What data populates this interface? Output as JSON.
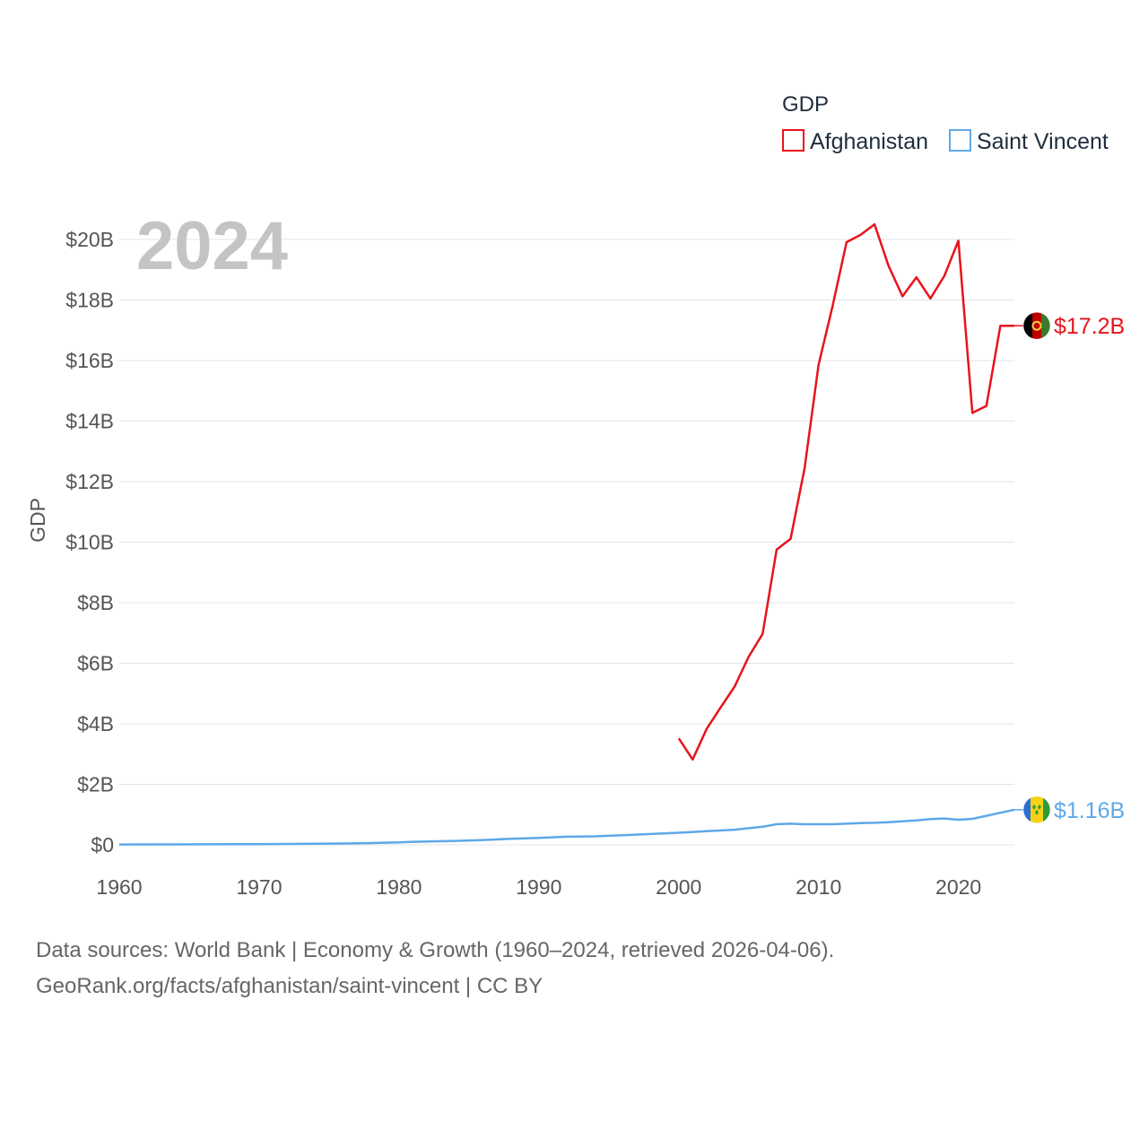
{
  "chart_data": {
    "type": "line",
    "title": "",
    "xlabel": "",
    "ylabel": "GDP",
    "xlim": [
      1960,
      2024
    ],
    "ylim": [
      0,
      21000000000
    ],
    "x_ticks": [
      1960,
      1970,
      1980,
      1990,
      2000,
      2010,
      2020
    ],
    "x_tick_labels": [
      "1960",
      "1970",
      "1980",
      "1990",
      "2000",
      "2010",
      "2020"
    ],
    "y_ticks": [
      0,
      2000000000,
      4000000000,
      6000000000,
      8000000000,
      10000000000,
      12000000000,
      14000000000,
      16000000000,
      18000000000,
      20000000000
    ],
    "y_tick_labels": [
      "$0",
      "$2B",
      "$4B",
      "$6B",
      "$8B",
      "$10B",
      "$12B",
      "$14B",
      "$16B",
      "$18B",
      "$20B"
    ],
    "grid": true,
    "legend": {
      "title": "GDP",
      "placement": "top-right"
    },
    "year_label": "2024",
    "series": [
      {
        "name": "Afghanistan",
        "color": "#e8131b",
        "end_label": "$17.2B",
        "flag_icon": "afghanistan-flag-icon",
        "points": [
          [
            2000,
            3520000000.0
          ],
          [
            2001,
            2820000000.0
          ],
          [
            2002,
            3830000000.0
          ],
          [
            2003,
            4540000000.0
          ],
          [
            2004,
            5230000000.0
          ],
          [
            2005,
            6210000000.0
          ],
          [
            2006,
            6970000000.0
          ],
          [
            2007,
            9750000000.0
          ],
          [
            2008,
            10110000000.0
          ],
          [
            2009,
            12440000000.0
          ],
          [
            2010,
            15860000000.0
          ],
          [
            2011,
            17800000000.0
          ],
          [
            2012,
            19910000000.0
          ],
          [
            2013,
            20150000000.0
          ],
          [
            2014,
            20500000000.0
          ],
          [
            2015,
            19130000000.0
          ],
          [
            2016,
            18120000000.0
          ],
          [
            2017,
            18750000000.0
          ],
          [
            2018,
            18050000000.0
          ],
          [
            2019,
            18800000000.0
          ],
          [
            2020,
            19960000000.0
          ],
          [
            2021,
            14270000000.0
          ],
          [
            2022,
            14500000000.0
          ],
          [
            2023,
            17150000000.0
          ],
          [
            2024,
            17150000000.0
          ]
        ]
      },
      {
        "name": "Saint Vincent",
        "color": "#5ea8e8",
        "end_label": "$1.16B",
        "flag_icon": "saint-vincent-flag-icon",
        "points": [
          [
            1960,
            12000000.0
          ],
          [
            1962,
            14000000.0
          ],
          [
            1964,
            16000000.0
          ],
          [
            1966,
            18000000.0
          ],
          [
            1968,
            20000000.0
          ],
          [
            1970,
            24000000.0
          ],
          [
            1972,
            30000000.0
          ],
          [
            1974,
            36000000.0
          ],
          [
            1976,
            44000000.0
          ],
          [
            1978,
            60000000.0
          ],
          [
            1980,
            80000000.0
          ],
          [
            1981,
            100000000.0
          ],
          [
            1982,
            110000000.0
          ],
          [
            1984,
            130000000.0
          ],
          [
            1986,
            160000000.0
          ],
          [
            1988,
            200000000.0
          ],
          [
            1990,
            230000000.0
          ],
          [
            1992,
            270000000.0
          ],
          [
            1994,
            280000000.0
          ],
          [
            1996,
            320000000.0
          ],
          [
            1998,
            360000000.0
          ],
          [
            2000,
            400000000.0
          ],
          [
            2002,
            450000000.0
          ],
          [
            2004,
            500000000.0
          ],
          [
            2006,
            600000000.0
          ],
          [
            2007,
            680000000.0
          ],
          [
            2008,
            700000000.0
          ],
          [
            2009,
            680000000.0
          ],
          [
            2010,
            680000000.0
          ],
          [
            2011,
            680000000.0
          ],
          [
            2012,
            700000000.0
          ],
          [
            2013,
            720000000.0
          ],
          [
            2014,
            730000000.0
          ],
          [
            2015,
            750000000.0
          ],
          [
            2016,
            780000000.0
          ],
          [
            2017,
            810000000.0
          ],
          [
            2018,
            850000000.0
          ],
          [
            2019,
            870000000.0
          ],
          [
            2020,
            830000000.0
          ],
          [
            2021,
            860000000.0
          ],
          [
            2022,
            960000000.0
          ],
          [
            2023,
            1060000000.0
          ],
          [
            2024,
            1160000000.0
          ]
        ]
      }
    ]
  },
  "footer": {
    "line1": "Data sources: World Bank | Economy & Growth (1960–2024, retrieved 2026-04-06).",
    "line2": "GeoRank.org/facts/afghanistan/saint-vincent | CC BY"
  }
}
